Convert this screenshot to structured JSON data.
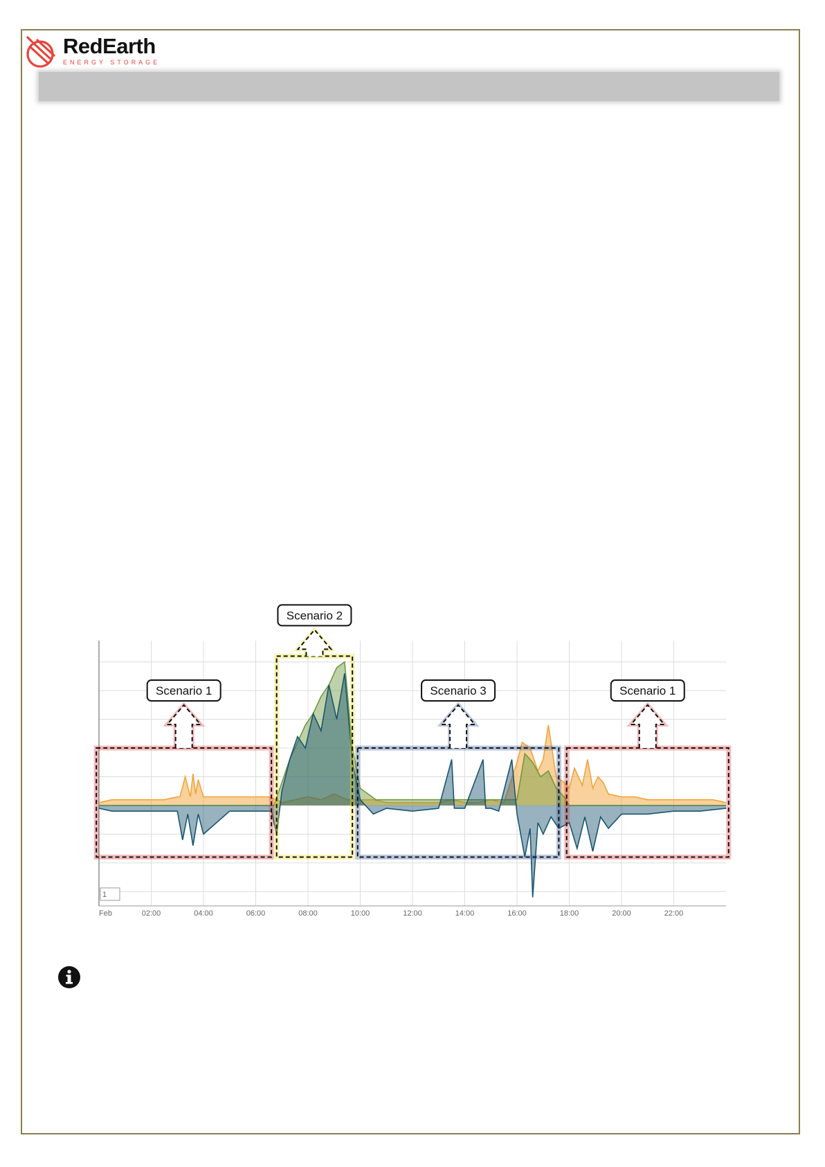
{
  "brand": {
    "name": "RedEarth",
    "subtitle": "ENERGY STORAGE",
    "accent_color": "#e8433a"
  },
  "heading_bar": {
    "color": "#c4c4c4"
  },
  "chart_data": {
    "type": "area",
    "x_axis": {
      "ticks": [
        "Feb",
        "02:00",
        "04:00",
        "06:00",
        "08:00",
        "10:00",
        "12:00",
        "14:00",
        "16:00",
        "18:00",
        "20:00",
        "22:00"
      ],
      "range_hours": [
        0,
        24
      ]
    },
    "y_axis": {
      "range": [
        -3.5,
        5.5
      ]
    },
    "grid": true,
    "series": [
      {
        "color": "#f2a33a",
        "hours": [
          0,
          0.5,
          1,
          1.5,
          2,
          2.5,
          3,
          3.1,
          3.3,
          3.5,
          3.6,
          3.7,
          3.8,
          4.0,
          4.2,
          4.5,
          5,
          5.5,
          6,
          6.5,
          6.8,
          7,
          7.5,
          8,
          8.5,
          9,
          9.5,
          10,
          10.5,
          11,
          11.5,
          12,
          12.5,
          13,
          13.5,
          14,
          14.5,
          15,
          15.5,
          16,
          16.2,
          16.5,
          16.8,
          17,
          17.2,
          17.5,
          17.8,
          18,
          18.2,
          18.5,
          18.7,
          18.9,
          19.1,
          19.3,
          19.5,
          20,
          20.5,
          21,
          21.5,
          22,
          22.5,
          23,
          23.5,
          24
        ],
        "values": [
          0.1,
          0.2,
          0.2,
          0.2,
          0.2,
          0.2,
          0.3,
          0.3,
          1.0,
          0.3,
          1.1,
          0.4,
          0.9,
          0.3,
          0.3,
          0.3,
          0.3,
          0.3,
          0.3,
          0.3,
          0.2,
          0.1,
          0.2,
          0.3,
          0.2,
          0.4,
          0.2,
          0.2,
          0.2,
          0.1,
          0.1,
          0.1,
          0.1,
          0.1,
          0.2,
          0.1,
          0.1,
          0.2,
          0.1,
          1.5,
          2.2,
          2.0,
          1.2,
          1.6,
          2.8,
          1.0,
          0.8,
          0.6,
          1.3,
          0.7,
          1.6,
          0.6,
          1.0,
          0.8,
          0.4,
          0.3,
          0.3,
          0.2,
          0.2,
          0.2,
          0.2,
          0.2,
          0.2,
          0.1
        ]
      },
      {
        "color": "#6f9a3e",
        "hours": [
          0,
          6.7,
          7,
          7.3,
          7.6,
          7.9,
          8.2,
          8.5,
          8.8,
          9.1,
          9.4,
          9.7,
          10,
          10.3,
          10.6,
          16,
          16.3,
          16.6,
          16.9,
          17.2,
          17.5,
          17.8,
          18,
          24
        ],
        "values": [
          0,
          0,
          0.8,
          1.6,
          2.2,
          2.8,
          3.2,
          3.8,
          4.2,
          4.8,
          5.0,
          2.0,
          0.6,
          0.4,
          0.2,
          0.2,
          1.8,
          1.5,
          1.0,
          1.2,
          0.6,
          0.3,
          0,
          0
        ]
      },
      {
        "color": "#1a5570",
        "hours": [
          0,
          0.5,
          1,
          2,
          3,
          3.2,
          3.4,
          3.6,
          3.8,
          4.0,
          5,
          6,
          6.6,
          6.8,
          7,
          7.3,
          7.6,
          7.9,
          8.2,
          8.5,
          8.8,
          9.1,
          9.4,
          9.7,
          10,
          10.5,
          11,
          12,
          13,
          13.5,
          13.6,
          14,
          14.7,
          14.8,
          15,
          15.3,
          15.8,
          16,
          16.3,
          16.5,
          16.6,
          16.8,
          17,
          17.3,
          17.6,
          18,
          18.3,
          18.6,
          18.9,
          19.2,
          19.5,
          20,
          21,
          22,
          23,
          24
        ],
        "values": [
          -0.1,
          -0.2,
          -0.2,
          -0.2,
          -0.2,
          -1.2,
          -0.3,
          -1.4,
          -0.3,
          -1.0,
          -0.2,
          -0.2,
          -0.2,
          -1.0,
          0.5,
          1.6,
          2.4,
          2.0,
          3.2,
          2.6,
          4.2,
          3.0,
          4.6,
          1.5,
          0.2,
          -0.3,
          -0.1,
          -0.2,
          -0.1,
          1.6,
          -0.1,
          -0.1,
          1.6,
          -0.1,
          -0.1,
          -0.2,
          1.6,
          -0.3,
          -1.8,
          -0.8,
          -3.2,
          -0.6,
          -1.0,
          -0.4,
          -0.8,
          -0.6,
          -1.5,
          -0.4,
          -1.6,
          -0.4,
          -0.8,
          -0.3,
          -0.3,
          -0.2,
          -0.2,
          -0.1
        ]
      }
    ],
    "annotations": [
      {
        "label": "Scenario 1",
        "start_hour": -0.1,
        "end_hour": 6.6,
        "color": "#e23d3d"
      },
      {
        "label": "Scenario 2",
        "start_hour": 6.8,
        "end_hour": 9.7,
        "color": "#f0e020"
      },
      {
        "label": "Scenario 3",
        "start_hour": 9.9,
        "end_hour": 17.6,
        "color": "#3a5fa0"
      },
      {
        "label": "Scenario 1",
        "start_hour": 17.9,
        "end_hour": 24.1,
        "color": "#e23d3d"
      }
    ],
    "legend_box_value": "1"
  }
}
